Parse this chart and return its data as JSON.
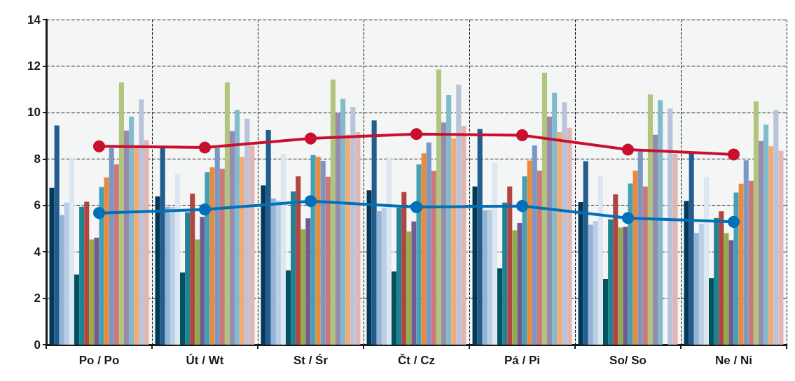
{
  "chart_data": {
    "type": "bar",
    "categories": [
      "Po / Po",
      "Út / Wt",
      "St / Śr",
      "Čt / Cz",
      "Pá / Pi",
      "So/ So",
      "Ne / Ni"
    ],
    "series": [
      {
        "color": "#00395a",
        "values": [
          6.75,
          6.38,
          6.86,
          6.65,
          6.81,
          6.14,
          6.19
        ]
      },
      {
        "color": "#235d8f",
        "values": [
          9.44,
          8.47,
          9.24,
          9.66,
          9.29,
          7.9,
          8.22
        ]
      },
      {
        "color": "#94b3d5",
        "values": [
          5.58,
          5.94,
          6.3,
          5.75,
          5.79,
          5.16,
          4.81
        ]
      },
      {
        "color": "#b9cfe5",
        "values": [
          6.12,
          5.94,
          6.2,
          5.89,
          5.8,
          5.33,
          5.21
        ]
      },
      {
        "color": "#dde7f1",
        "values": [
          8.05,
          7.35,
          8.21,
          8.07,
          7.85,
          7.26,
          7.23
        ]
      },
      {
        "color": "#00535e",
        "values": [
          3.02,
          3.11,
          3.2,
          3.15,
          3.29,
          2.83,
          2.86
        ]
      },
      {
        "color": "#1f8394",
        "values": [
          5.94,
          5.7,
          6.6,
          5.89,
          6.12,
          5.4,
          5.46
        ]
      },
      {
        "color": "#b04641",
        "values": [
          6.16,
          6.5,
          7.25,
          6.57,
          6.81,
          6.47,
          5.74
        ]
      },
      {
        "color": "#93ab4a",
        "values": [
          4.53,
          4.53,
          4.97,
          4.87,
          4.92,
          5.04,
          4.8
        ]
      },
      {
        "color": "#735a93",
        "values": [
          4.61,
          5.5,
          5.44,
          5.31,
          5.24,
          5.07,
          4.5
        ]
      },
      {
        "color": "#43a0b5",
        "values": [
          6.79,
          7.43,
          8.17,
          7.76,
          7.25,
          6.94,
          6.55
        ]
      },
      {
        "color": "#e98b3b",
        "values": [
          7.2,
          7.64,
          8.09,
          8.24,
          7.93,
          7.49,
          6.93
        ]
      },
      {
        "color": "#7a98c5",
        "values": [
          8.47,
          8.47,
          7.92,
          8.71,
          8.58,
          8.32,
          7.94
        ]
      },
      {
        "color": "#cb7978",
        "values": [
          7.76,
          7.57,
          7.23,
          7.48,
          7.49,
          6.81,
          7.05
        ]
      },
      {
        "color": "#b1c57f",
        "values": [
          11.3,
          11.3,
          11.42,
          11.85,
          11.71,
          10.78,
          10.47
        ]
      },
      {
        "color": "#998ab0",
        "values": [
          9.22,
          9.2,
          9.97,
          9.57,
          9.82,
          9.04,
          8.77
        ]
      },
      {
        "color": "#81bccd",
        "values": [
          9.82,
          10.11,
          10.58,
          10.75,
          10.85,
          10.53,
          9.48
        ]
      },
      {
        "color": "#f4aa74",
        "values": [
          8.5,
          8.08,
          9.04,
          8.88,
          9.15,
          null,
          8.54
        ]
      },
      {
        "color": "#b9c4db",
        "values": [
          10.56,
          9.73,
          10.24,
          11.2,
          10.44,
          10.17,
          10.1
        ]
      },
      {
        "color": "#dfb6b3",
        "values": [
          8.81,
          8.56,
          9.15,
          9.42,
          9.34,
          8.22,
          8.35
        ]
      },
      {
        "type": "line",
        "color": "#c8102e",
        "values": [
          8.54,
          8.49,
          8.88,
          9.07,
          9.02,
          8.4,
          8.19
        ]
      },
      {
        "type": "line",
        "color": "#0070b8",
        "values": [
          5.67,
          5.82,
          6.18,
          5.92,
          5.97,
          5.45,
          5.29
        ]
      }
    ],
    "ylim": [
      0,
      14
    ],
    "yticks": [
      0,
      2,
      4,
      6,
      8,
      10,
      12,
      14
    ],
    "grid": true,
    "marker": "circle",
    "line_style": "solid"
  }
}
